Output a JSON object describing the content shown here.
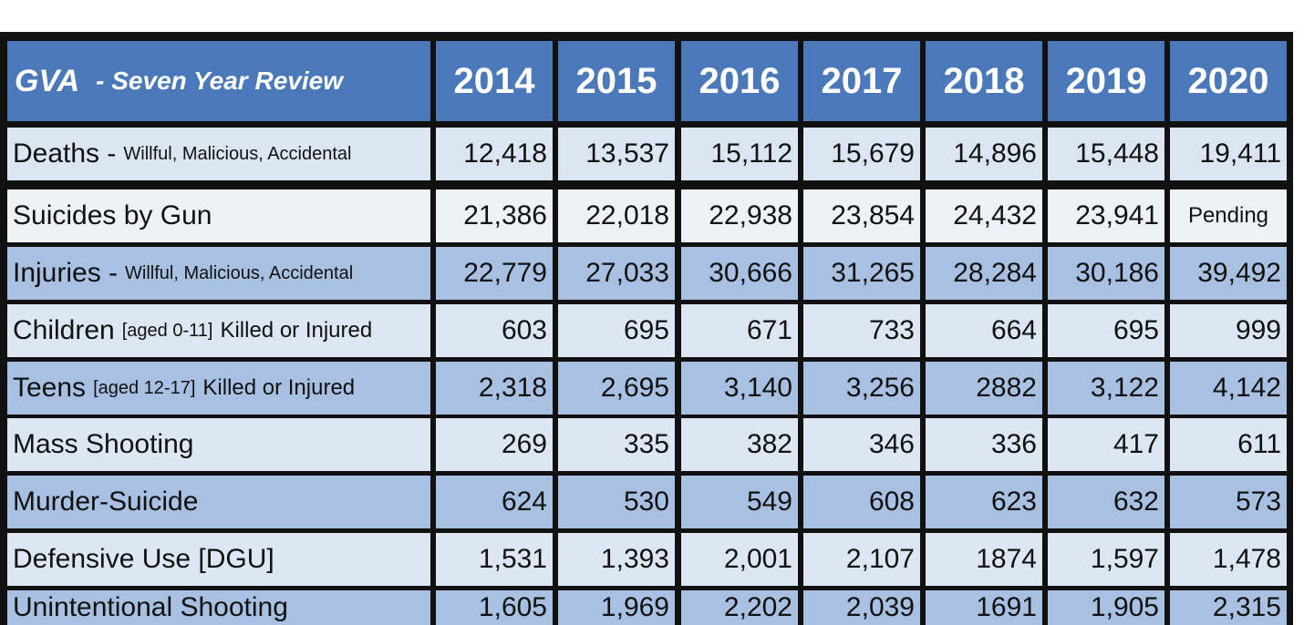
{
  "header": {
    "title": [
      "GVA",
      "-  Seven Year Review"
    ],
    "years": [
      "2014",
      "2015",
      "2016",
      "2017",
      "2018",
      "2019",
      "2020"
    ]
  },
  "table": {
    "rows": [
      {
        "label": [
          "Deaths -",
          "Willful, Malicious, Accidental"
        ],
        "values": [
          "12,418",
          "13,537",
          "15,112",
          "15,679",
          "14,896",
          "15,448",
          "19,411"
        ]
      },
      {
        "label": [
          "Suicides by Gun"
        ],
        "values": [
          "21,386",
          "22,018",
          "22,938",
          "23,854",
          "24,432",
          "23,941",
          "Pending"
        ]
      },
      {
        "label": [
          "Injuries -",
          "Willful, Malicious, Accidental"
        ],
        "values": [
          "22,779",
          "27,033",
          "30,666",
          "31,265",
          "28,284",
          "30,186",
          "39,492"
        ]
      },
      {
        "label": [
          "Children",
          "[aged 0-11]",
          "Killed or Injured"
        ],
        "values": [
          "603",
          "695",
          "671",
          "733",
          "664",
          "695",
          "999"
        ]
      },
      {
        "label": [
          "Teens",
          "[aged 12-17]",
          "Killed or Injured"
        ],
        "values": [
          "2,318",
          "2,695",
          "3,140",
          "3,256",
          "2882",
          "3,122",
          "4,142"
        ]
      },
      {
        "label": [
          "Mass Shooting"
        ],
        "values": [
          "269",
          "335",
          "382",
          "346",
          "336",
          "417",
          "611"
        ]
      },
      {
        "label": [
          "Murder-Suicide"
        ],
        "values": [
          "624",
          "530",
          "549",
          "608",
          "623",
          "632",
          "573"
        ]
      },
      {
        "label": [
          "Defensive Use [DGU]"
        ],
        "values": [
          "1,531",
          "1,393",
          "2,001",
          "2,107",
          "1874",
          "1,597",
          "1,478"
        ]
      },
      {
        "label": [
          "Unintentional Shooting"
        ],
        "values": [
          "1,605",
          "1,969",
          "2,202",
          "2,039",
          "1691",
          "1,905",
          "2,315"
        ]
      }
    ]
  }
}
